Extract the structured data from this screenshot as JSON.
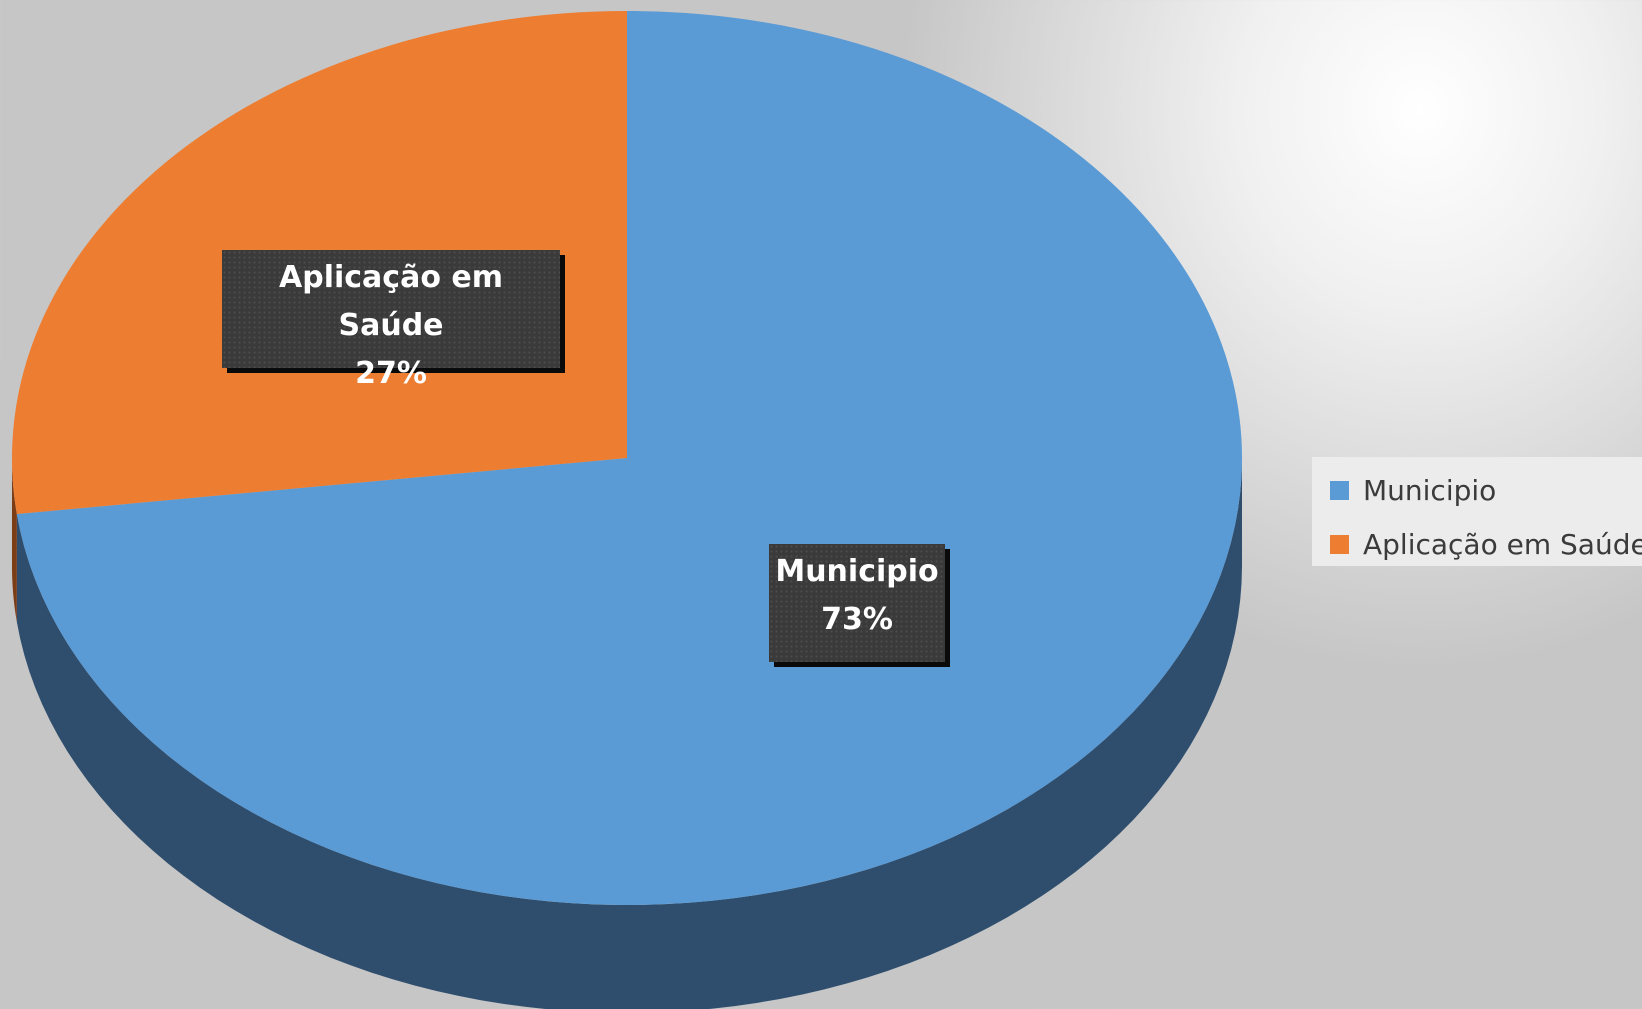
{
  "chart_data": {
    "type": "pie",
    "style": "3d",
    "categories": [
      "Municipio",
      "Aplicação em Saúde"
    ],
    "values": [
      73,
      27
    ],
    "value_unit": "%",
    "colors": [
      "#5b9bd5",
      "#ed7d31"
    ],
    "side_colors": [
      "#2f4e6d",
      "#7a3d16"
    ],
    "title": "",
    "legend_position": "right",
    "data_labels": [
      {
        "name": "Municipio",
        "percent": "73%"
      },
      {
        "name": "Aplicação em Saúde",
        "percent": "27%"
      }
    ]
  }
}
